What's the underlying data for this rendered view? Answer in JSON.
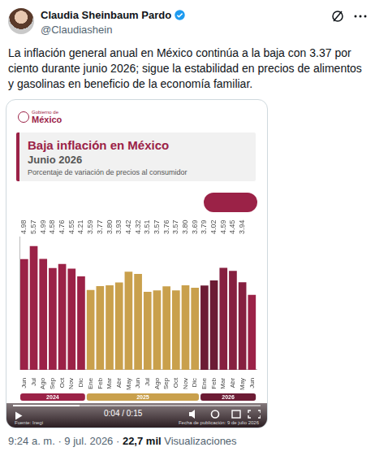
{
  "tweet": {
    "author": "Claudia Sheinbaum Pardo",
    "handle": "@Claudiashein",
    "text": "La inflación general anual en México continúa a la baja con 3.37 por ciento durante junio 2026; sigue la estabilidad en precios de alimentos y gasolinas en beneficio de la economía familiar.",
    "meta": "9:24 a. m. · 9 jul. 2026 ·",
    "views": "22,7 mil",
    "views_label": "Visualizaciones"
  },
  "card": {
    "logo_small": "Gobierno de",
    "logo_large": "México",
    "video_time": "0:04 / 0:15",
    "source": "Fuente: Inegi",
    "published": "Fecha de publicación: 9 de julio 2026"
  },
  "chart_data": {
    "type": "bar",
    "title": "Baja inflación en México",
    "subtitle": "Junio 2026",
    "description": "Porcentaje de variación de precios al consumidor",
    "categories": [
      "Jun",
      "Jul",
      "Ago",
      "Sep",
      "Oct",
      "Nov",
      "Dic",
      "Ene",
      "Feb",
      "Mar",
      "Abr",
      "May",
      "Jun",
      "Jul",
      "Ago",
      "Sep",
      "Oct",
      "Nov",
      "Dic",
      "Ene",
      "Feb",
      "Mar",
      "Abr",
      "May",
      "Jun"
    ],
    "values": [
      4.98,
      5.57,
      4.99,
      4.58,
      4.76,
      4.55,
      4.21,
      3.59,
      3.77,
      3.8,
      3.93,
      4.42,
      4.32,
      3.51,
      3.57,
      3.76,
      3.57,
      3.8,
      3.69,
      3.79,
      4.02,
      4.59,
      4.45,
      3.94,
      3.37
    ],
    "value_labels": [
      "4.98",
      "5.57",
      "4.99",
      "4.58",
      "4.76",
      "4.55",
      "4.21",
      "3.59",
      "3.77",
      "3.80",
      "3.93",
      "4.42",
      "4.32",
      "3.51",
      "3.57",
      "3.76",
      "3.57",
      "3.80",
      "3.69",
      "3.79",
      "4.02",
      "4.59",
      "4.45",
      "3.94",
      null
    ],
    "colors": [
      "#9b2247",
      "#9b2247",
      "#9b2247",
      "#9b2247",
      "#9b2247",
      "#9b2247",
      "#9b2247",
      "#c9a04c",
      "#c9a04c",
      "#c9a04c",
      "#c9a04c",
      "#c9a04c",
      "#c9a04c",
      "#c9a04c",
      "#c9a04c",
      "#c9a04c",
      "#c9a04c",
      "#c9a04c",
      "#c9a04c",
      "#6c1b34",
      "#6c1b34",
      "#862040",
      "#862040",
      "#862040",
      "#9b2247"
    ],
    "x_groups": [
      {
        "label": "2024",
        "span": 7,
        "color": "#9b2247"
      },
      {
        "label": "2025",
        "span": 12,
        "color": "#c9a04c"
      },
      {
        "label": "2026",
        "span": 6,
        "color": "#6c1b34"
      }
    ],
    "ylim": [
      0,
      6
    ],
    "grid": false,
    "data_labels": true,
    "tick_labels": "x"
  }
}
